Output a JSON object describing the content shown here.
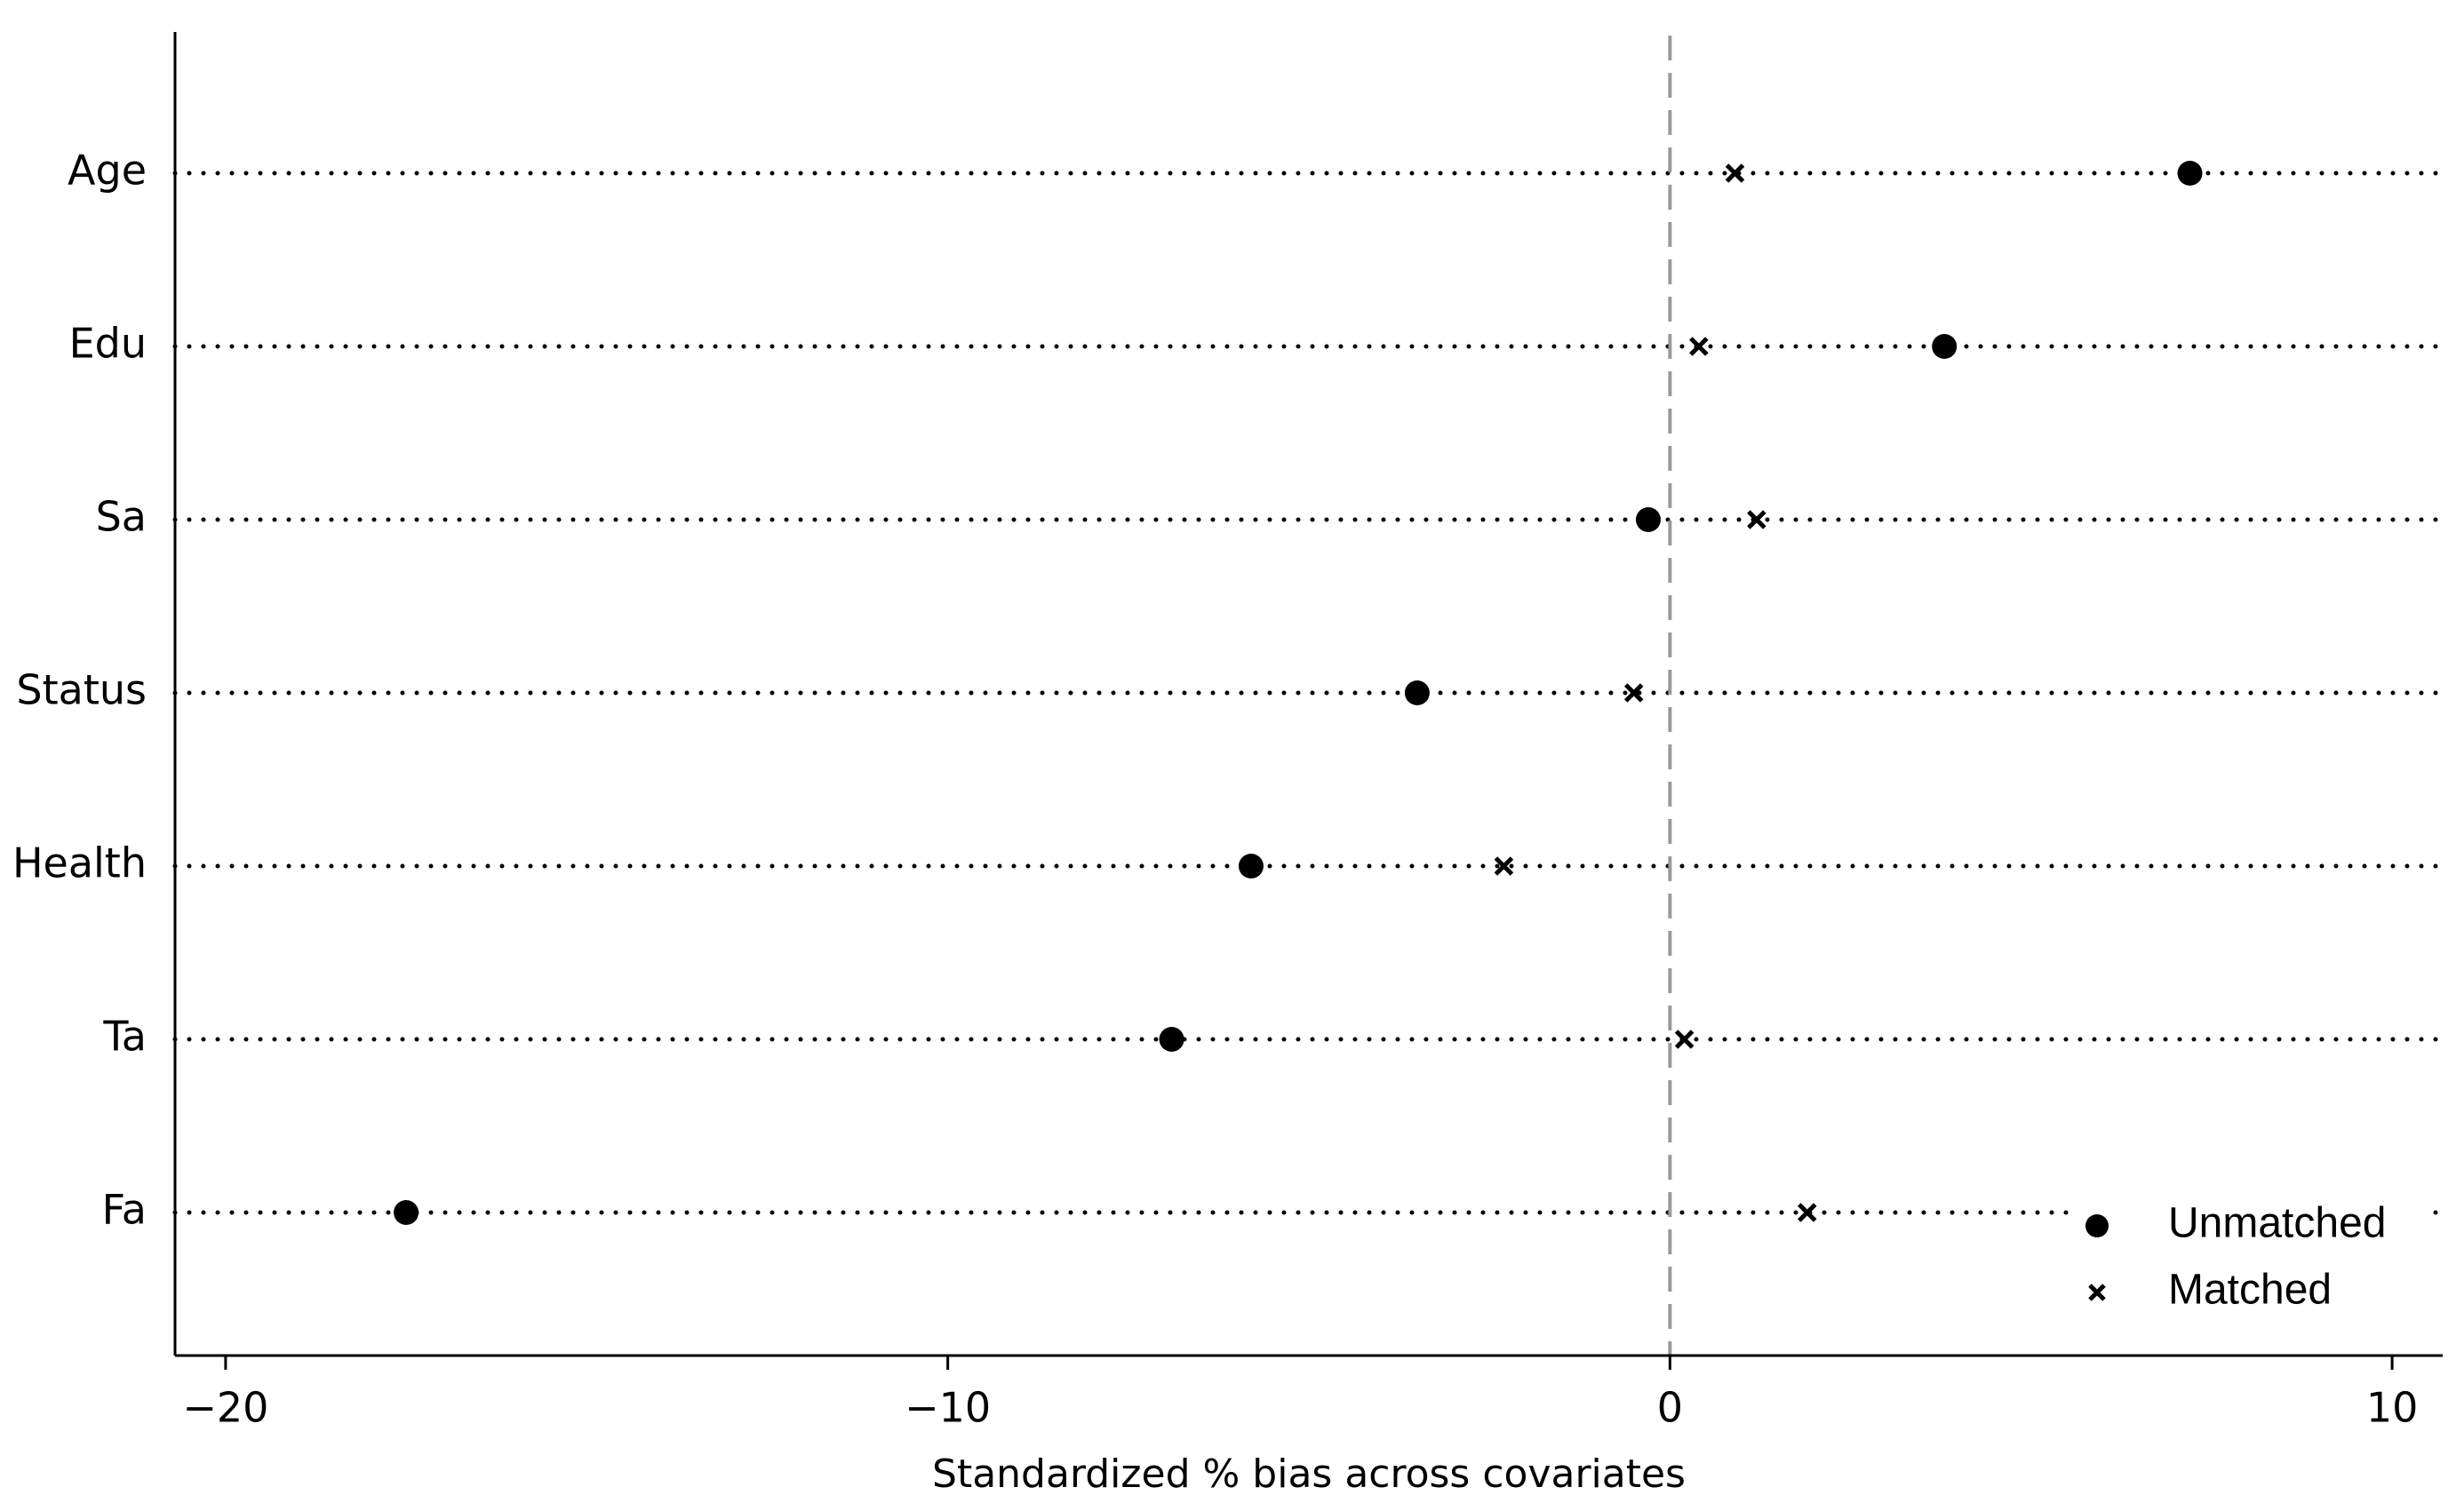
{
  "chart_data": {
    "type": "dot",
    "x_label": "Standardized % bias across covariates",
    "categories": [
      "Age",
      "Edu",
      "Sa",
      "Status",
      "Health",
      "Ta",
      "Fa"
    ],
    "series": [
      {
        "name": "Unmatched",
        "marker": "circle",
        "color": "#000000",
        "values": [
          7.2,
          3.8,
          -0.3,
          -3.5,
          -5.8,
          -6.9,
          -17.5
        ]
      },
      {
        "name": "Matched",
        "marker": "x",
        "color": "#000000",
        "values": [
          0.9,
          0.4,
          1.2,
          -0.5,
          -2.3,
          0.2,
          1.9
        ]
      }
    ],
    "xlim": [
      -20.7,
      10.7
    ],
    "xticks": [
      {
        "value": -20,
        "label": "−20"
      },
      {
        "value": -10,
        "label": "−10"
      },
      0,
      10
    ],
    "reference_line": 0,
    "legend": "bottom-right"
  }
}
